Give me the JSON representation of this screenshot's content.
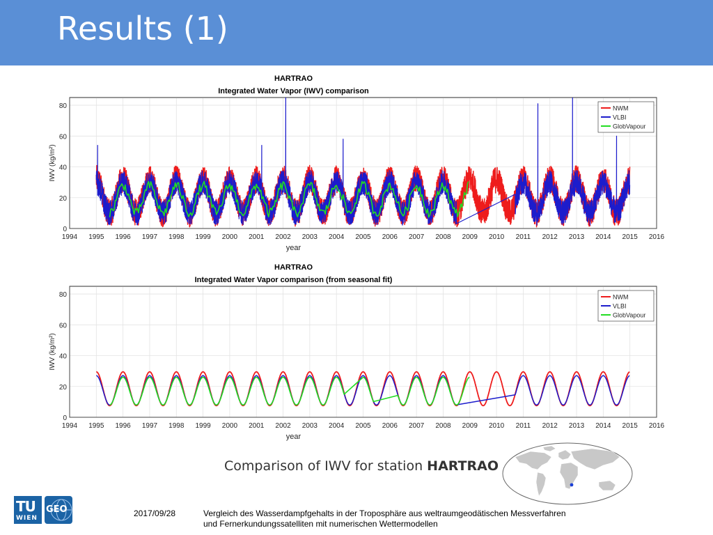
{
  "slide": {
    "title": "Results (1)",
    "caption_prefix": "Comparison of IWV for station ",
    "caption_station": "HARTRAO",
    "footer_date": "2017/09/28",
    "footer_line1": "Vergleich des Wasserdampfgehalts in der Troposphäre aus weltraumgeodätischen Messverfahren",
    "footer_line2": "und Fernerkundungssatelliten mit numerischen Wettermodellen",
    "logo_tu_text": "TU",
    "logo_wien_text": "WIEN",
    "logo_geo_text": "GEO",
    "header_color": "#5a8fd6"
  },
  "chart_data": [
    {
      "type": "line",
      "title": "HARTRAO",
      "subtitle": "Integrated Water Vapor (IWV) comparison",
      "xlabel": "year",
      "ylabel": "IWV (kg/m²)",
      "xlim": [
        1994,
        2016
      ],
      "ylim": [
        0,
        85
      ],
      "xticks": [
        1994,
        1995,
        1996,
        1997,
        1998,
        1999,
        2000,
        2001,
        2002,
        2003,
        2004,
        2005,
        2006,
        2007,
        2008,
        2009,
        2010,
        2011,
        2012,
        2013,
        2014,
        2015,
        2016
      ],
      "yticks": [
        0,
        20,
        40,
        60,
        80
      ],
      "grid": true,
      "legend_position": "top-right",
      "series": [
        {
          "name": "NWM",
          "color": "#ee1c1c",
          "x_range": [
            1995,
            2015
          ],
          "mean": 21,
          "amplitude": 11,
          "phase": 0.0,
          "noise": 9,
          "width": 1.5
        },
        {
          "name": "VLBI",
          "color": "#1c1ccc",
          "x_range": [
            1995,
            2015
          ],
          "gap": [
            2008.5,
            2010.7
          ],
          "mean": 20,
          "amplitude": 10,
          "phase": 0.0,
          "noise": 8,
          "width": 1.2,
          "spikes": [
            [
              1995.05,
              54
            ],
            [
              2001.2,
              54
            ],
            [
              2002.1,
              85
            ],
            [
              2004.25,
              58
            ],
            [
              2011.55,
              81
            ],
            [
              2012.85,
              85
            ],
            [
              2014.5,
              60
            ]
          ]
        },
        {
          "name": "GlobVapour",
          "color": "#22dd22",
          "x_range": [
            1995.5,
            2009.0
          ],
          "mean": 19,
          "amplitude": 9,
          "phase": 0.0,
          "noise": 3,
          "width": 1.6,
          "monthly": true
        }
      ]
    },
    {
      "type": "line",
      "title": "HARTRAO",
      "subtitle": "Integrated Water Vapor comparison (from seasonal fit)",
      "xlabel": "year",
      "ylabel": "IWV (kg/m²)",
      "xlim": [
        1994,
        2016
      ],
      "ylim": [
        0,
        85
      ],
      "xticks": [
        1994,
        1995,
        1996,
        1997,
        1998,
        1999,
        2000,
        2001,
        2002,
        2003,
        2004,
        2005,
        2006,
        2007,
        2008,
        2009,
        2010,
        2011,
        2012,
        2013,
        2014,
        2015,
        2016
      ],
      "yticks": [
        0,
        20,
        40,
        60,
        80
      ],
      "grid": true,
      "legend_position": "top-right",
      "series": [
        {
          "name": "NWM",
          "color": "#ee1c1c",
          "x_range": [
            1995,
            2015
          ],
          "mean": 18.5,
          "amplitude": 11,
          "phase": 0.0,
          "width": 1.8
        },
        {
          "name": "VLBI",
          "color": "#1c1ccc",
          "x_range": [
            1995,
            2015
          ],
          "gap": [
            2008.5,
            2010.7
          ],
          "mean": 17.5,
          "amplitude": 9.5,
          "phase": 0.0,
          "width": 1.5
        },
        {
          "name": "GlobVapour",
          "color": "#22dd22",
          "x_range": [
            1995.5,
            2009.0
          ],
          "gaps": [
            [
              2004.3,
              2005.0
            ],
            [
              2005.4,
              2006.3
            ]
          ],
          "mean": 17,
          "amplitude": 9,
          "phase": 0.0,
          "width": 1.6
        }
      ]
    }
  ],
  "map": {
    "ocean_color": "#ffffff",
    "land_color": "#c8c8c8",
    "marker_color": "#1a3fd6"
  }
}
